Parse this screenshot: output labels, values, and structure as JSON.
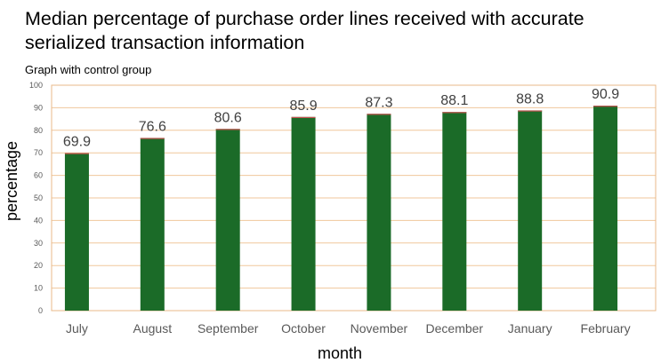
{
  "chart_data": {
    "type": "bar",
    "title": "Median percentage of purchase order lines received with accurate serialized transaction information",
    "subtitle": "Graph with control group",
    "xlabel": "month",
    "ylabel": "percentage",
    "categories": [
      "July",
      "August",
      "September",
      "October",
      "November",
      "December",
      "January",
      "February"
    ],
    "values": [
      69.9,
      76.6,
      80.6,
      85.9,
      87.3,
      88.1,
      88.8,
      90.9
    ],
    "data_labels": [
      "69.9",
      "76.6",
      "80.6",
      "85.9",
      "87.3",
      "88.1",
      "88.8",
      "90.9"
    ],
    "ylim": [
      0,
      100
    ],
    "ytick_step": 10,
    "yticks": [
      "0",
      "10",
      "20",
      "30",
      "40",
      "50",
      "60",
      "70",
      "80",
      "90",
      "100"
    ],
    "grid": "horizontal",
    "legend": "none"
  },
  "colors": {
    "bar_fill": "#1b6b28",
    "bar_top_accent": "#c0504d",
    "gridline": "#f0c79b",
    "plot_border": "#e8b888",
    "tick_label": "#595959",
    "data_label": "#404040"
  }
}
